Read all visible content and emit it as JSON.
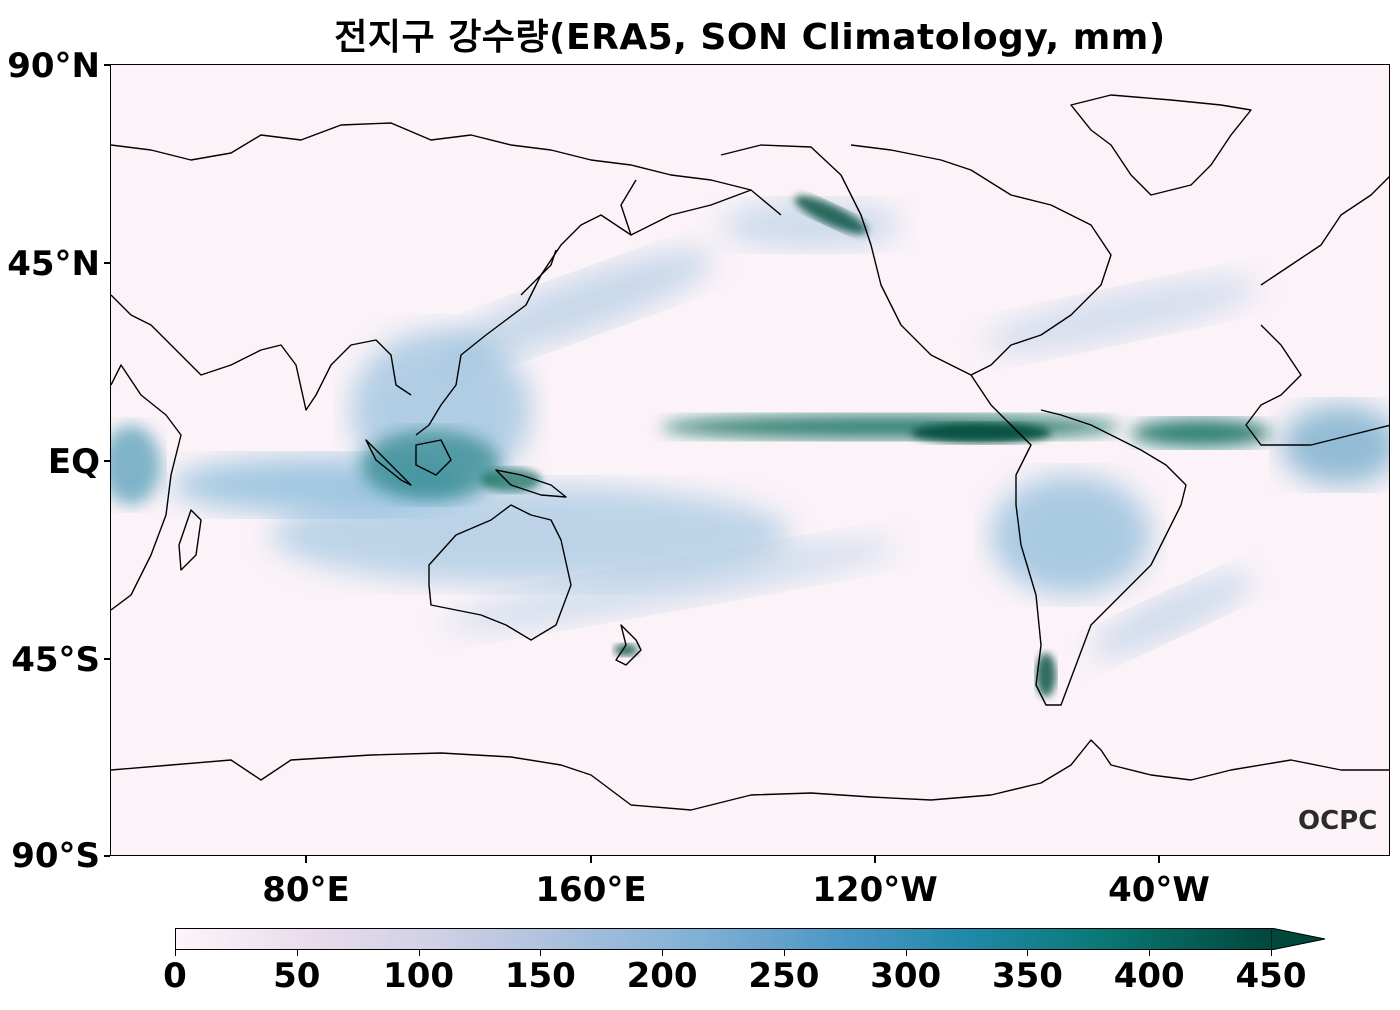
{
  "title": "전지구 강수량(ERA5, SON Climatology, mm)",
  "map": {
    "lat_labels": [
      "90°N",
      "45°N",
      "EQ",
      "45°S",
      "90°S"
    ],
    "lon_labels": [
      "80°E",
      "160°E",
      "120°W",
      "40°W"
    ],
    "logo": "OCPC"
  },
  "colorbar": {
    "ticks": [
      "0",
      "50",
      "100",
      "150",
      "200",
      "250",
      "300",
      "350",
      "400",
      "450"
    ],
    "extend": "max",
    "colormap": "PuBuGn",
    "min_color": "#fdf5fa",
    "max_color": "#02473c"
  }
}
